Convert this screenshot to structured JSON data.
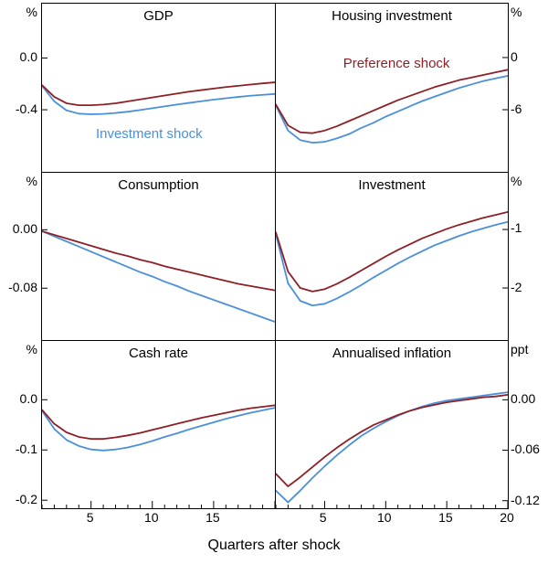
{
  "figure": {
    "xlabel": "Quarters after shock",
    "series_labels": {
      "preference": "Preference shock",
      "investment": "Investment shock"
    },
    "colors": {
      "preference": "#8d2026",
      "investment": "#4a90d9"
    }
  },
  "chart_data": {
    "type": "line",
    "x": [
      1,
      2,
      3,
      4,
      5,
      6,
      7,
      8,
      9,
      10,
      11,
      12,
      13,
      14,
      15,
      16,
      17,
      18,
      19,
      20
    ],
    "xticks_major": [
      5,
      10,
      15,
      20
    ],
    "xtick_labels": {
      "left_column": [
        "5",
        "10",
        "15"
      ],
      "right_column": [
        "5",
        "10",
        "15",
        "20"
      ]
    },
    "legend_position": "in-panel",
    "grid": false,
    "panels": [
      {
        "title": "GDP",
        "unit": "%",
        "axis_side": "left",
        "ylim": [
          -0.88,
          0.42
        ],
        "yticks": [
          0.0,
          -0.4
        ],
        "ytick_labels": [
          "0.0",
          "-0.4"
        ],
        "series": {
          "preference": [
            -0.21,
            -0.3,
            -0.35,
            -0.365,
            -0.365,
            -0.36,
            -0.35,
            -0.335,
            -0.32,
            -0.305,
            -0.29,
            -0.275,
            -0.26,
            -0.248,
            -0.236,
            -0.225,
            -0.215,
            -0.205,
            -0.196,
            -0.188
          ],
          "investment": [
            -0.215,
            -0.335,
            -0.405,
            -0.43,
            -0.435,
            -0.432,
            -0.425,
            -0.415,
            -0.402,
            -0.388,
            -0.374,
            -0.36,
            -0.347,
            -0.334,
            -0.322,
            -0.311,
            -0.301,
            -0.292,
            -0.285,
            -0.278
          ]
        }
      },
      {
        "title": "Housing investment",
        "unit": "%",
        "axis_side": "right",
        "ylim": [
          -13.15,
          6.2
        ],
        "yticks": [
          0,
          -6
        ],
        "ytick_labels": [
          "0",
          "-6"
        ],
        "series": {
          "preference": [
            -5.4,
            -7.8,
            -8.6,
            -8.7,
            -8.4,
            -7.9,
            -7.3,
            -6.7,
            -6.1,
            -5.5,
            -4.9,
            -4.4,
            -3.9,
            -3.4,
            -3.0,
            -2.6,
            -2.3,
            -2.0,
            -1.7,
            -1.4
          ],
          "investment": [
            -5.5,
            -8.4,
            -9.5,
            -9.8,
            -9.7,
            -9.3,
            -8.8,
            -8.1,
            -7.5,
            -6.8,
            -6.2,
            -5.6,
            -5.0,
            -4.5,
            -4.0,
            -3.5,
            -3.1,
            -2.7,
            -2.4,
            -2.1
          ]
        }
      },
      {
        "title": "Consumption",
        "unit": "%",
        "axis_side": "left",
        "ylim": [
          -0.151,
          0.078
        ],
        "yticks": [
          0.0,
          -0.08
        ],
        "ytick_labels": [
          "0.00",
          "-0.08"
        ],
        "series": {
          "preference": [
            -0.002,
            -0.007,
            -0.012,
            -0.017,
            -0.022,
            -0.027,
            -0.032,
            -0.036,
            -0.041,
            -0.045,
            -0.05,
            -0.054,
            -0.058,
            -0.062,
            -0.066,
            -0.07,
            -0.074,
            -0.077,
            -0.08,
            -0.083
          ],
          "investment": [
            -0.002,
            -0.009,
            -0.016,
            -0.023,
            -0.03,
            -0.037,
            -0.044,
            -0.051,
            -0.058,
            -0.064,
            -0.071,
            -0.077,
            -0.084,
            -0.09,
            -0.096,
            -0.102,
            -0.108,
            -0.114,
            -0.12,
            -0.126
          ]
        }
      },
      {
        "title": "Investment",
        "unit": "%",
        "axis_side": "right",
        "ylim": [
          -2.89,
          -0.03
        ],
        "yticks": [
          -1,
          -2
        ],
        "ytick_labels": [
          "-1",
          "-2"
        ],
        "series": {
          "preference": [
            -1.05,
            -1.72,
            -2.0,
            -2.06,
            -2.02,
            -1.93,
            -1.82,
            -1.7,
            -1.58,
            -1.46,
            -1.35,
            -1.25,
            -1.15,
            -1.07,
            -0.99,
            -0.92,
            -0.86,
            -0.8,
            -0.75,
            -0.7
          ],
          "investment": [
            -1.08,
            -1.92,
            -2.22,
            -2.3,
            -2.27,
            -2.18,
            -2.07,
            -1.95,
            -1.82,
            -1.7,
            -1.58,
            -1.47,
            -1.37,
            -1.27,
            -1.19,
            -1.11,
            -1.04,
            -0.98,
            -0.92,
            -0.87
          ]
        }
      },
      {
        "title": "Cash rate",
        "unit": "%",
        "axis_side": "left",
        "ylim": [
          -0.216,
          0.117
        ],
        "yticks": [
          0.0,
          -0.1,
          -0.2
        ],
        "ytick_labels": [
          "0.0",
          "-0.1",
          "-0.2"
        ],
        "series": {
          "preference": [
            -0.02,
            -0.048,
            -0.065,
            -0.074,
            -0.078,
            -0.078,
            -0.075,
            -0.071,
            -0.066,
            -0.06,
            -0.054,
            -0.048,
            -0.042,
            -0.036,
            -0.031,
            -0.026,
            -0.021,
            -0.017,
            -0.014,
            -0.011
          ],
          "investment": [
            -0.022,
            -0.058,
            -0.08,
            -0.092,
            -0.099,
            -0.101,
            -0.099,
            -0.095,
            -0.089,
            -0.082,
            -0.074,
            -0.067,
            -0.059,
            -0.052,
            -0.045,
            -0.038,
            -0.032,
            -0.026,
            -0.021,
            -0.016
          ]
        }
      },
      {
        "title": "Annualised inflation",
        "unit": "ppt",
        "axis_side": "right",
        "ylim": [
          -0.129,
          0.07
        ],
        "yticks": [
          0.0,
          -0.06,
          -0.12
        ],
        "ytick_labels": [
          "0.00",
          "-0.06",
          "-0.12"
        ],
        "series": {
          "preference": [
            -0.088,
            -0.103,
            -0.092,
            -0.08,
            -0.068,
            -0.057,
            -0.047,
            -0.038,
            -0.03,
            -0.024,
            -0.018,
            -0.013,
            -0.009,
            -0.006,
            -0.003,
            -0.001,
            0.001,
            0.003,
            0.004,
            0.006
          ],
          "investment": [
            -0.108,
            -0.122,
            -0.108,
            -0.093,
            -0.079,
            -0.066,
            -0.054,
            -0.043,
            -0.034,
            -0.026,
            -0.019,
            -0.013,
            -0.008,
            -0.004,
            -0.001,
            0.001,
            0.003,
            0.005,
            0.007,
            0.009
          ]
        }
      }
    ]
  }
}
